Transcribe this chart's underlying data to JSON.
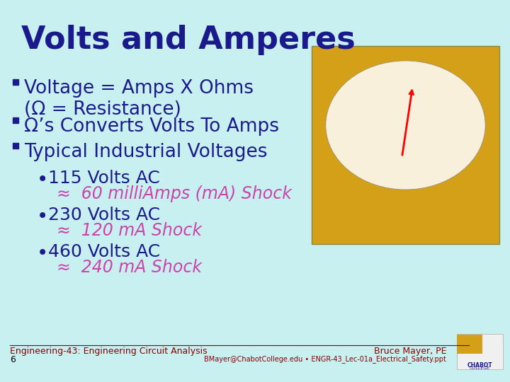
{
  "title": "Volts and Amperes",
  "title_color": "#1a1a8c",
  "title_fontsize": 32,
  "title_bold": true,
  "bg_color": "#c8f0f0",
  "bullet_color": "#1a1a8c",
  "bullet_items": [
    "Voltage = Amps X Ohms\n(Ω = Resistance)",
    "Ω’s Converts Volts To Amps",
    "Typical Industrial Voltages"
  ],
  "bullet_fontsize": 19,
  "sub_bullet_color": "#1a1a8c",
  "sub_bullets": [
    "115 Volts AC",
    "230 Volts AC",
    "460 Volts AC"
  ],
  "sub_bullet_fontsize": 18,
  "approx_color": "#cc44aa",
  "approx_items": [
    "≈  60 milliAmps (mA) Shock",
    "≈  120 mA Shock",
    "≈  240 mA Shock"
  ],
  "approx_fontsize": 17,
  "footer_left": "Engineering-43: Engineering Circuit Analysis",
  "footer_left2": "6",
  "footer_right": "Bruce Mayer, PE",
  "footer_right2": "BMayer@ChabotCollege.edu • ENGR-43_Lec-01a_Electrical_Safety.ppt",
  "footer_color": "#8b0000",
  "footer_fontsize": 9,
  "separator_color": "#8b0000",
  "chabot_box_color": "#d4a017",
  "image_placeholder_color": "#d4a017"
}
